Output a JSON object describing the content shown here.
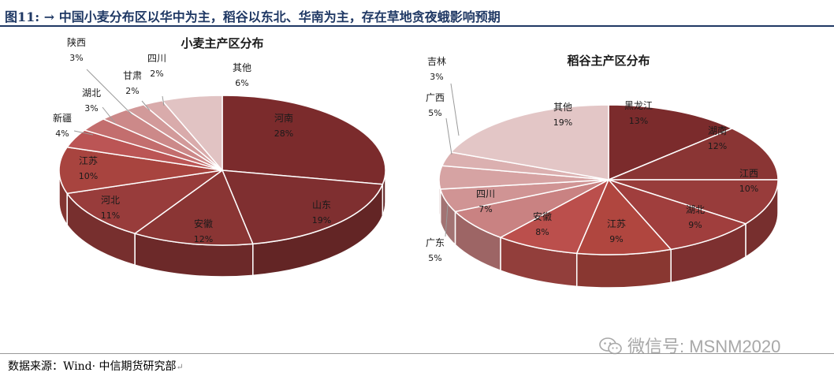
{
  "header": {
    "label": "图11: →  中国小麦分布区以华中为主，稻谷以东北、华南为主，存在草地贪夜蛾影响预期"
  },
  "watermark": {
    "text": "微信号: MSNM2020"
  },
  "footer": {
    "source": "数据来源：Wind· 中信期货研究部"
  },
  "chart_data": [
    {
      "type": "pie",
      "title": "小麦主产区分布",
      "slices": [
        {
          "label": "河南",
          "value": 28,
          "text": "28%"
        },
        {
          "label": "山东",
          "value": 19,
          "text": "19%"
        },
        {
          "label": "安徽",
          "value": 12,
          "text": "12%"
        },
        {
          "label": "河北",
          "value": 11,
          "text": "11%"
        },
        {
          "label": "江苏",
          "value": 10,
          "text": "10%"
        },
        {
          "label": "新疆",
          "value": 4,
          "text": "4%"
        },
        {
          "label": "湖北",
          "value": 3,
          "text": "3%"
        },
        {
          "label": "陕西",
          "value": 3,
          "text": "3%"
        },
        {
          "label": "甘肃",
          "value": 2,
          "text": "2%"
        },
        {
          "label": "四川",
          "value": 2,
          "text": "2%"
        },
        {
          "label": "其他",
          "value": 6,
          "text": "6%"
        }
      ],
      "colors": [
        "#7b2b2c",
        "#7f2f30",
        "#8a3534",
        "#983c3b",
        "#a8443f",
        "#bb5555",
        "#c36e6e",
        "#cc8989",
        "#d29a9a",
        "#d9abab",
        "#e1c3c3"
      ]
    },
    {
      "type": "pie",
      "title": "稻谷主产区分布",
      "slices": [
        {
          "label": "黑龙江",
          "value": 13,
          "text": "13%"
        },
        {
          "label": "湖南",
          "value": 12,
          "text": "12%"
        },
        {
          "label": "江西",
          "value": 10,
          "text": "10%"
        },
        {
          "label": "湖北",
          "value": 9,
          "text": "9%"
        },
        {
          "label": "江苏",
          "value": 9,
          "text": "9%"
        },
        {
          "label": "安徽",
          "value": 8,
          "text": "8%"
        },
        {
          "label": "四川",
          "value": 7,
          "text": "7%"
        },
        {
          "label": "广东",
          "value": 5,
          "text": "5%"
        },
        {
          "label": "广西",
          "value": 5,
          "text": "5%"
        },
        {
          "label": "吉林",
          "value": 3,
          "text": "3%"
        },
        {
          "label": "其他",
          "value": 19,
          "text": "19%"
        }
      ],
      "colors": [
        "#7b2b2c",
        "#8a3534",
        "#983c3b",
        "#a03e3d",
        "#b0463f",
        "#bb4f4c",
        "#c98282",
        "#d09494",
        "#d6a3a3",
        "#dbb0b0",
        "#e3c6c6"
      ]
    }
  ]
}
